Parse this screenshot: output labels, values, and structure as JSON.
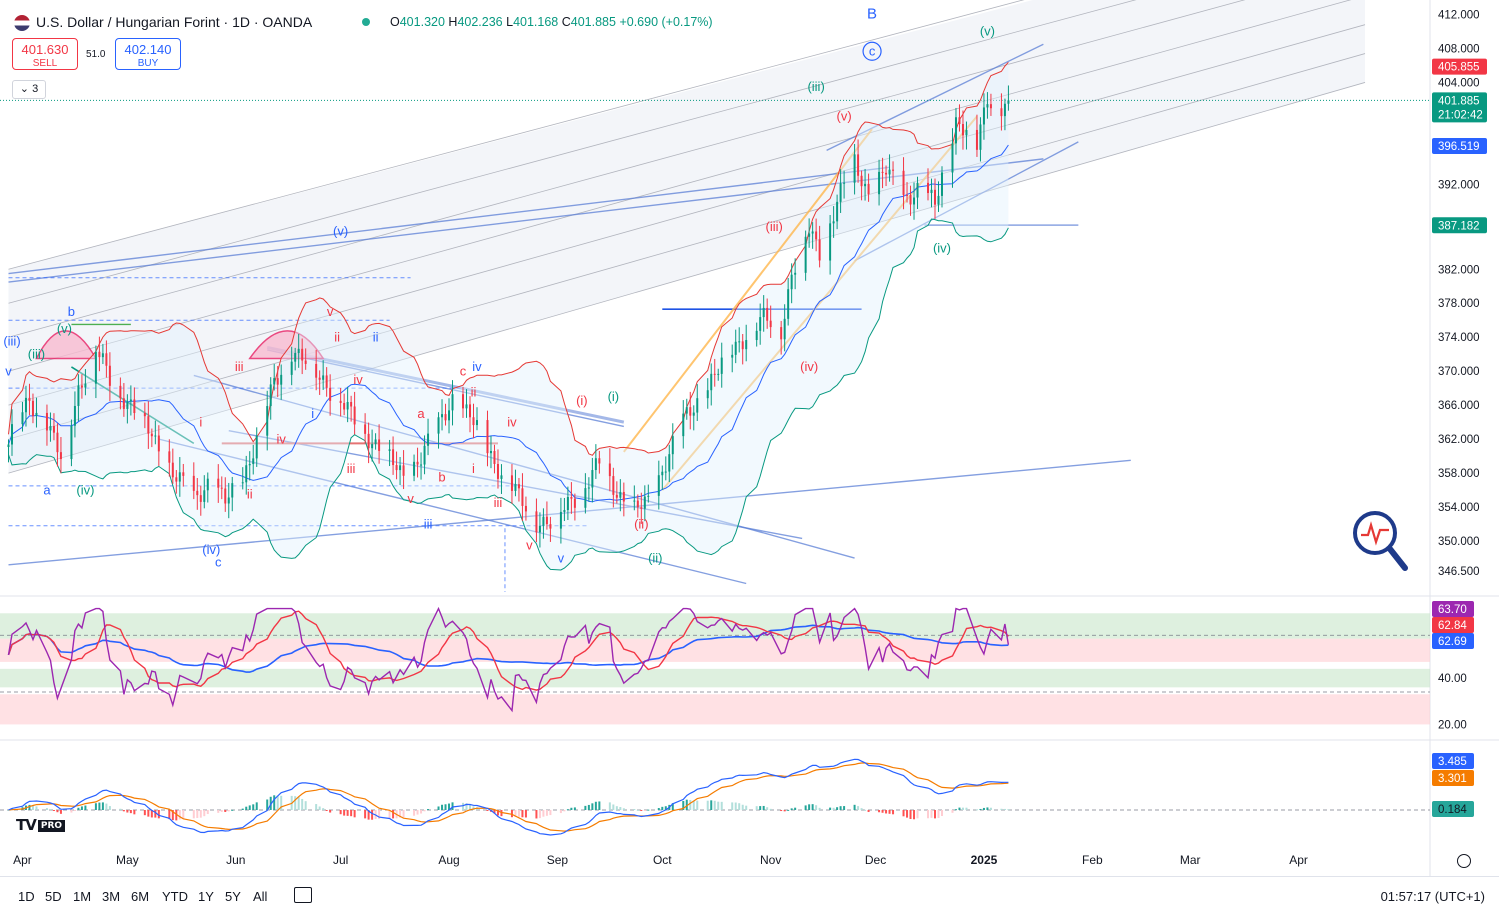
{
  "header": {
    "title": "U.S. Dollar / Hungarian Forint · 1D · OANDA",
    "ohlc": {
      "o_label": "O",
      "o": "401.320",
      "h_label": "H",
      "h": "402.236",
      "l_label": "L",
      "l": "401.168",
      "c_label": "C",
      "c": "401.885",
      "change": "+0.690 (+0.17%)"
    },
    "sell": {
      "price": "401.630",
      "label": "SELL"
    },
    "buy": {
      "price": "402.140",
      "label": "BUY"
    },
    "spread": "51.0",
    "collapse_label": "⌄ 3"
  },
  "bottom_bar": {
    "timeframes": [
      "1D",
      "5D",
      "1M",
      "3M",
      "6M",
      "YTD",
      "1Y",
      "5Y",
      "All"
    ],
    "clock": "01:57:17 (UTC+1)"
  },
  "brand": {
    "logo": "TV",
    "tier": "PRO"
  },
  "colors": {
    "up": "#089981",
    "down": "#f23645",
    "blue": "#2962ff",
    "purple": "#9c27b0",
    "accent_line": "#5b7fd6"
  },
  "chart_data": [
    {
      "type": "candlestick",
      "title": "U.S. Dollar / Hungarian Forint · 1D · OANDA",
      "x_ticks": [
        "Apr",
        "May",
        "Jun",
        "Jul",
        "Aug",
        "Sep",
        "Oct",
        "Nov",
        "Dec",
        "2025",
        "Feb",
        "Mar",
        "Apr"
      ],
      "y_ticks": [
        "412.000",
        "408.000",
        "404.000",
        "392.000",
        "382.000",
        "378.000",
        "374.000",
        "370.000",
        "366.000",
        "362.000",
        "358.000",
        "354.000",
        "350.000",
        "346.500"
      ],
      "ylim": [
        344,
        413
      ],
      "price_labels": [
        {
          "value": 405.855,
          "text": "405.855",
          "color": "#f23645"
        },
        {
          "value": 401.885,
          "text": "401.885",
          "sub": "21:02:42",
          "color": "#089981"
        },
        {
          "value": 396.519,
          "text": "396.519",
          "color": "#2962ff"
        },
        {
          "value": 387.182,
          "text": "387.182",
          "color": "#089981"
        }
      ],
      "close_path": [
        [
          "2024-03-28",
          362.0
        ],
        [
          "2024-04-03",
          366.5
        ],
        [
          "2024-04-08",
          364.0
        ],
        [
          "2024-04-12",
          359.5
        ],
        [
          "2024-04-17",
          368.0
        ],
        [
          "2024-04-22",
          372.5
        ],
        [
          "2024-04-26",
          369.0
        ],
        [
          "2024-05-02",
          366.0
        ],
        [
          "2024-05-08",
          362.5
        ],
        [
          "2024-05-14",
          358.0
        ],
        [
          "2024-05-20",
          355.0
        ],
        [
          "2024-05-24",
          357.0
        ],
        [
          "2024-05-29",
          354.5
        ],
        [
          "2024-06-03",
          357.5
        ],
        [
          "2024-06-07",
          362.0
        ],
        [
          "2024-06-12",
          368.5
        ],
        [
          "2024-06-17",
          372.5
        ],
        [
          "2024-06-21",
          371.0
        ],
        [
          "2024-06-26",
          369.0
        ],
        [
          "2024-07-01",
          366.5
        ],
        [
          "2024-07-05",
          364.0
        ],
        [
          "2024-07-10",
          362.0
        ],
        [
          "2024-07-15",
          359.5
        ],
        [
          "2024-07-19",
          357.5
        ],
        [
          "2024-07-24",
          360.0
        ],
        [
          "2024-07-29",
          363.5
        ],
        [
          "2024-08-02",
          367.0
        ],
        [
          "2024-08-07",
          364.5
        ],
        [
          "2024-08-12",
          361.0
        ],
        [
          "2024-08-16",
          358.0
        ],
        [
          "2024-08-21",
          355.0
        ],
        [
          "2024-08-26",
          352.5
        ],
        [
          "2024-08-30",
          352.0
        ],
        [
          "2024-09-04",
          354.5
        ],
        [
          "2024-09-09",
          356.5
        ],
        [
          "2024-09-13",
          359.0
        ],
        [
          "2024-09-18",
          356.0
        ],
        [
          "2024-09-23",
          353.5
        ],
        [
          "2024-09-27",
          354.5
        ],
        [
          "2024-10-02",
          359.5
        ],
        [
          "2024-10-07",
          364.0
        ],
        [
          "2024-10-11",
          366.5
        ],
        [
          "2024-10-16",
          369.5
        ],
        [
          "2024-10-21",
          372.5
        ],
        [
          "2024-10-25",
          374.5
        ],
        [
          "2024-10-30",
          376.0
        ],
        [
          "2024-11-04",
          375.0
        ],
        [
          "2024-11-07",
          381.5
        ],
        [
          "2024-11-12",
          386.5
        ],
        [
          "2024-11-15",
          384.0
        ],
        [
          "2024-11-20",
          390.0
        ],
        [
          "2024-11-25",
          394.5
        ],
        [
          "2024-11-29",
          391.0
        ],
        [
          "2024-12-04",
          393.5
        ],
        [
          "2024-12-09",
          390.5
        ],
        [
          "2024-12-13",
          391.5
        ],
        [
          "2024-12-18",
          389.5
        ],
        [
          "2024-12-20",
          393.0
        ],
        [
          "2024-12-24",
          399.5
        ],
        [
          "2024-12-30",
          396.5
        ],
        [
          "2025-01-02",
          402.5
        ],
        [
          "2025-01-06",
          401.0
        ],
        [
          "2025-01-08",
          401.885
        ]
      ],
      "wave_labels": [
        {
          "text": "B",
          "date": "2024-11-30",
          "value": 411.5,
          "color": "#2962ff"
        },
        {
          "text": "c",
          "date": "2024-11-30",
          "value": 407.2,
          "color": "#2962ff",
          "circled": true
        },
        {
          "text": "(v)",
          "date": "2025-01-02",
          "value": 409.5,
          "color": "#089981"
        },
        {
          "text": "(iii)",
          "date": "2024-11-14",
          "value": 403.0,
          "color": "#089981"
        },
        {
          "text": "(v)",
          "date": "2024-11-22",
          "value": 399.5,
          "color": "#f23645"
        },
        {
          "text": "(iii)",
          "date": "2024-11-02",
          "value": 386.5,
          "color": "#f23645"
        },
        {
          "text": "(iv)",
          "date": "2024-12-20",
          "value": 384.0,
          "color": "#089981"
        },
        {
          "text": "(iv)",
          "date": "2024-11-12",
          "value": 370.0,
          "color": "#f23645"
        },
        {
          "text": "(i)",
          "date": "2024-09-17",
          "value": 366.5,
          "color": "#089981"
        },
        {
          "text": "(i)",
          "date": "2024-09-08",
          "value": 366.0,
          "color": "#f23645"
        },
        {
          "text": "(ii)",
          "date": "2024-09-25",
          "value": 351.5,
          "color": "#f23645"
        },
        {
          "text": "(ii)",
          "date": "2024-09-29",
          "value": 347.5,
          "color": "#089981"
        },
        {
          "text": "(v)",
          "date": "2024-07-01",
          "value": 386.0,
          "color": "#2962ff"
        },
        {
          "text": "b",
          "date": "2024-04-15",
          "value": 376.5,
          "color": "#2962ff"
        },
        {
          "text": "(iii)",
          "date": "2024-03-29",
          "value": 373.0,
          "color": "#2962ff"
        },
        {
          "text": "(iii)",
          "date": "2024-04-05",
          "value": 371.5,
          "color": "#089981"
        },
        {
          "text": "(v)",
          "date": "2024-04-13",
          "value": 374.5,
          "color": "#089981"
        },
        {
          "text": "v",
          "date": "2024-03-28",
          "value": 369.5,
          "color": "#2962ff"
        },
        {
          "text": "a",
          "date": "2024-04-08",
          "value": 355.5,
          "color": "#2962ff"
        },
        {
          "text": "(iv)",
          "date": "2024-04-19",
          "value": 355.5,
          "color": "#089981"
        },
        {
          "text": "(iv)",
          "date": "2024-05-25",
          "value": 348.5,
          "color": "#2962ff"
        },
        {
          "text": "c",
          "date": "2024-05-27",
          "value": 347.0,
          "color": "#2962ff"
        },
        {
          "text": "v",
          "date": "2024-06-28",
          "value": 376.5,
          "color": "#f23645"
        },
        {
          "text": "ii",
          "date": "2024-06-30",
          "value": 373.5,
          "color": "#f23645"
        },
        {
          "text": "ii",
          "date": "2024-07-11",
          "value": 373.5,
          "color": "#2962ff"
        },
        {
          "text": "iii",
          "date": "2024-06-02",
          "value": 370.0,
          "color": "#f23645"
        },
        {
          "text": "iv",
          "date": "2024-07-06",
          "value": 368.5,
          "color": "#f23645"
        },
        {
          "text": "i",
          "date": "2024-05-22",
          "value": 363.5,
          "color": "#f23645"
        },
        {
          "text": "i",
          "date": "2024-06-23",
          "value": 364.5,
          "color": "#2962ff"
        },
        {
          "text": "iv",
          "date": "2024-06-14",
          "value": 361.5,
          "color": "#f23645"
        },
        {
          "text": "ii",
          "date": "2024-06-05",
          "value": 355.0,
          "color": "#f23645"
        },
        {
          "text": "iii",
          "date": "2024-07-04",
          "value": 358.0,
          "color": "#f23645"
        },
        {
          "text": "a",
          "date": "2024-07-24",
          "value": 364.5,
          "color": "#f23645"
        },
        {
          "text": "c",
          "date": "2024-08-05",
          "value": 369.5,
          "color": "#f23645"
        },
        {
          "text": "ii",
          "date": "2024-08-08",
          "value": 367.0,
          "color": "#f23645"
        },
        {
          "text": "iv",
          "date": "2024-08-09",
          "value": 370.0,
          "color": "#2962ff"
        },
        {
          "text": "iv",
          "date": "2024-08-19",
          "value": 363.5,
          "color": "#f23645"
        },
        {
          "text": "b",
          "date": "2024-07-30",
          "value": 357.0,
          "color": "#f23645"
        },
        {
          "text": "i",
          "date": "2024-08-08",
          "value": 358.0,
          "color": "#f23645"
        },
        {
          "text": "v",
          "date": "2024-07-21",
          "value": 354.5,
          "color": "#f23645"
        },
        {
          "text": "iii",
          "date": "2024-08-15",
          "value": 354.0,
          "color": "#f23645"
        },
        {
          "text": "iii",
          "date": "2024-07-26",
          "value": 351.5,
          "color": "#2962ff"
        },
        {
          "text": "v",
          "date": "2024-08-24",
          "value": 349.0,
          "color": "#f23645"
        },
        {
          "text": "v",
          "date": "2024-09-02",
          "value": 347.5,
          "color": "#2962ff"
        }
      ]
    },
    {
      "type": "line",
      "name": "RSI",
      "ylim": [
        15,
        72
      ],
      "y_ticks": [
        "40.00",
        "20.00"
      ],
      "value_labels": [
        {
          "text": "63.70",
          "value": 63.7,
          "color": "#9c27b0"
        },
        {
          "text": "62.84",
          "value": 62.84,
          "color": "#f23645"
        },
        {
          "text": "62.69",
          "value": 62.69,
          "color": "#2962ff"
        }
      ],
      "zones": [
        [
          57,
          68
        ],
        [
          47,
          57
        ],
        [
          36,
          44
        ],
        [
          20,
          33
        ]
      ]
    },
    {
      "type": "line",
      "name": "MACD",
      "value_labels": [
        {
          "text": "3.485",
          "value": 3.485,
          "color": "#2962ff"
        },
        {
          "text": "3.301",
          "value": 3.301,
          "color": "#f57c00"
        },
        {
          "text": "0.184",
          "value": 0.184,
          "color": "#26a69a"
        }
      ]
    }
  ]
}
